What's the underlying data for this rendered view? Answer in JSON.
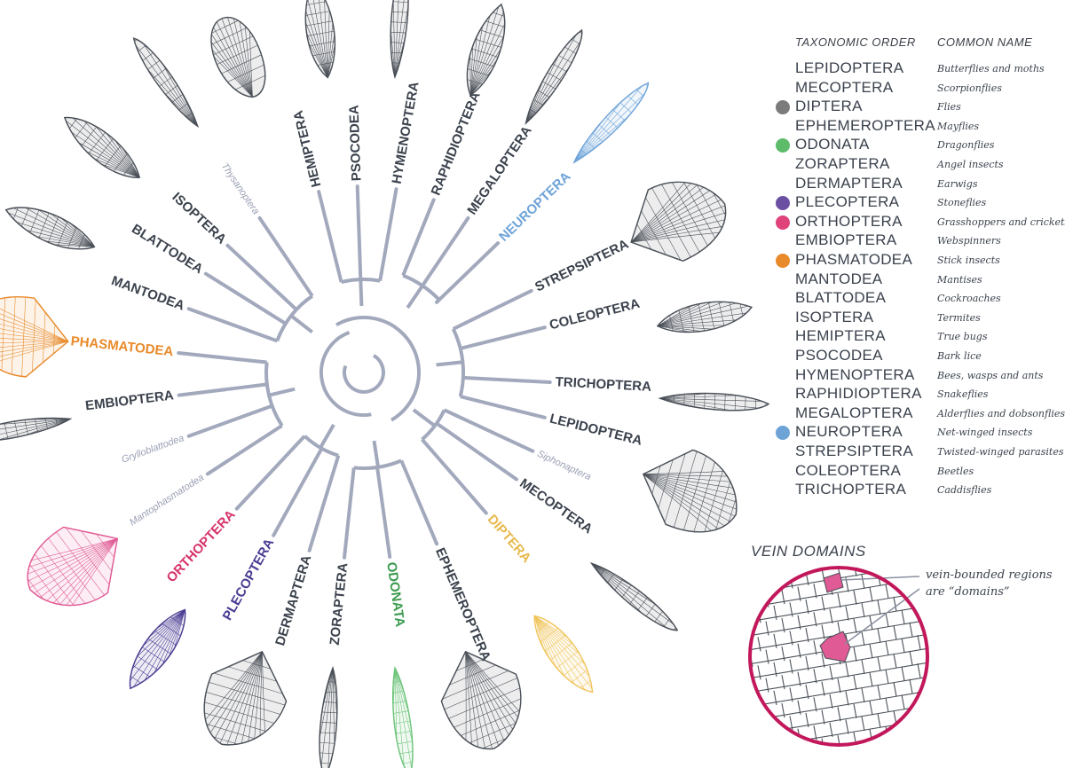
{
  "legend": {
    "header_order": "TAXONOMIC ORDER",
    "header_common": "COMMON NAME",
    "rows": [
      {
        "order": "LEPIDOPTERA",
        "common": "Butterflies and moths",
        "dot": ""
      },
      {
        "order": "MECOPTERA",
        "common": "Scorpionflies",
        "dot": ""
      },
      {
        "order": "DIPTERA",
        "common": "Flies",
        "dot": "#7b7b7b"
      },
      {
        "order": "EPHEMEROPTERA",
        "common": "Mayflies",
        "dot": ""
      },
      {
        "order": "ODONATA",
        "common": "Dragonflies",
        "dot": "#5dbb6a"
      },
      {
        "order": "ZORAPTERA",
        "common": "Angel insects",
        "dot": ""
      },
      {
        "order": "DERMAPTERA",
        "common": "Earwigs",
        "dot": ""
      },
      {
        "order": "PLECOPTERA",
        "common": "Stoneflies",
        "dot": "#6a4fa3"
      },
      {
        "order": "ORTHOPTERA",
        "common": "Grasshoppers and crickets",
        "dot": "#e0427a"
      },
      {
        "order": "EMBIOPTERA",
        "common": "Webspinners",
        "dot": ""
      },
      {
        "order": "PHASMATODEA",
        "common": "Stick insects",
        "dot": "#e88a2a"
      },
      {
        "order": "MANTODEA",
        "common": "Mantises",
        "dot": ""
      },
      {
        "order": "BLATTODEA",
        "common": "Cockroaches",
        "dot": ""
      },
      {
        "order": "ISOPTERA",
        "common": "Termites",
        "dot": ""
      },
      {
        "order": "HEMIPTERA",
        "common": "True bugs",
        "dot": ""
      },
      {
        "order": "PSOCODEA",
        "common": "Bark lice",
        "dot": ""
      },
      {
        "order": "HYMENOPTERA",
        "common": "Bees, wasps and ants",
        "dot": ""
      },
      {
        "order": "RAPHIDIOPTERA",
        "common": "Snakeflies",
        "dot": ""
      },
      {
        "order": "MEGALOPTERA",
        "common": "Alderflies and dobsonflies",
        "dot": ""
      },
      {
        "order": "NEUROPTERA",
        "common": "Net-winged insects",
        "dot": "#6ea3d8"
      },
      {
        "order": "STREPSIPTERA",
        "common": "Twisted-winged parasites",
        "dot": ""
      },
      {
        "order": "COLEOPTERA",
        "common": "Beetles",
        "dot": ""
      },
      {
        "order": "TRICHOPTERA",
        "common": "Caddisflies",
        "dot": ""
      }
    ]
  },
  "tree": {
    "center_color": "#a3a9bd",
    "tips": [
      {
        "label": "HEMIPTERA",
        "angle": -104,
        "style": "bold",
        "color": "#3b424d"
      },
      {
        "label": "PSOCODEA",
        "angle": -92,
        "style": "bold",
        "color": "#3b424d"
      },
      {
        "label": "HYMENOPTERA",
        "angle": -80,
        "style": "bold",
        "color": "#3b424d"
      },
      {
        "label": "RAPHIDIOPTERA",
        "angle": -68,
        "style": "bold",
        "color": "#3b424d"
      },
      {
        "label": "MEGALOPTERA",
        "angle": -56,
        "style": "bold",
        "color": "#3b424d"
      },
      {
        "label": "NEUROPTERA",
        "angle": -44,
        "style": "bold",
        "color": "#6ea3d8"
      },
      {
        "label": "STREPSIPTERA",
        "angle": -26,
        "style": "bold",
        "color": "#3b424d"
      },
      {
        "label": "COLEOPTERA",
        "angle": -14,
        "style": "bold",
        "color": "#3b424d"
      },
      {
        "label": "TRICHOPTERA",
        "angle": 3,
        "style": "bold",
        "color": "#3b424d"
      },
      {
        "label": "LEPIDOPTERA",
        "angle": 14,
        "style": "bold",
        "color": "#3b424d"
      },
      {
        "label": "Siphonaptera",
        "angle": 25,
        "style": "minor",
        "color": "#9aa0b4"
      },
      {
        "label": "MECOPTERA",
        "angle": 35,
        "style": "bold",
        "color": "#3b424d"
      },
      {
        "label": "DIPTERA",
        "angle": 49,
        "style": "bold",
        "color": "#e8b94c"
      },
      {
        "label": "EPHEMEROPTERA",
        "angle": 67,
        "style": "bold",
        "color": "#3b424d"
      },
      {
        "label": "ODONATA",
        "angle": 82,
        "style": "bold",
        "color": "#3a9a4e"
      },
      {
        "label": "ZORAPTERA",
        "angle": 96,
        "style": "bold",
        "color": "#3b424d"
      },
      {
        "label": "DERMAPTERA",
        "angle": 107,
        "style": "bold",
        "color": "#3b424d"
      },
      {
        "label": "PLECOPTERA",
        "angle": 119,
        "style": "bold",
        "color": "#4a3c93"
      },
      {
        "label": "ORTHOPTERA",
        "angle": 133,
        "style": "bold",
        "color": "#d6336c"
      },
      {
        "label": "Mantophasmatodea",
        "angle": 147,
        "style": "minor",
        "color": "#9aa0b4"
      },
      {
        "label": "Grylloblattodea",
        "angle": 160,
        "style": "minor",
        "color": "#9aa0b4"
      },
      {
        "label": "EMBIOPTERA",
        "angle": 173,
        "style": "bold",
        "color": "#3b424d"
      },
      {
        "label": "PHASMATODEA",
        "angle": 186,
        "style": "bold",
        "color": "#e88a2a"
      },
      {
        "label": "MANTODEA",
        "angle": 200,
        "style": "bold",
        "color": "#3b424d"
      },
      {
        "label": "BLATTODEA",
        "angle": 212,
        "style": "bold",
        "color": "#3b424d"
      },
      {
        "label": "ISOPTERA",
        "angle": 223,
        "style": "bold",
        "color": "#3b424d"
      },
      {
        "label": "Thysanoptera",
        "angle": 236,
        "style": "minor",
        "color": "#9aa0b4"
      }
    ]
  },
  "wings": [
    {
      "name": "hemiptera-wing",
      "angle": -112,
      "color": "#4a5058",
      "shape": "oval"
    },
    {
      "name": "psocodea-wing",
      "angle": -97,
      "color": "#4a5058",
      "shape": "leaf"
    },
    {
      "name": "hymenoptera-wing",
      "angle": -84,
      "color": "#4a5058",
      "shape": "long"
    },
    {
      "name": "raphidioptera-wing",
      "angle": -69,
      "color": "#4a5058",
      "shape": "leaf"
    },
    {
      "name": "megaloptera-wing",
      "angle": -57,
      "color": "#4a5058",
      "shape": "long"
    },
    {
      "name": "neuroptera-wing",
      "angle": -45,
      "color": "#6ea3d8",
      "shape": "long"
    },
    {
      "name": "strepsiptera-wing",
      "angle": -26,
      "color": "#4a5058",
      "shape": "fan"
    },
    {
      "name": "coleoptera-wing",
      "angle": -9,
      "color": "#4a5058",
      "shape": "leaf"
    },
    {
      "name": "trichoptera-wing",
      "angle": 5,
      "color": "#4a5058",
      "shape": "long"
    },
    {
      "name": "lepidoptera-wing",
      "angle": 20,
      "color": "#4a5058",
      "shape": "fan"
    },
    {
      "name": "mecoptera-wing",
      "angle": 40,
      "color": "#4a5058",
      "shape": "long"
    },
    {
      "name": "diptera-wing",
      "angle": 55,
      "color": "#f0c45a",
      "shape": "leaf"
    },
    {
      "name": "ephemeroptera-wing",
      "angle": 70,
      "color": "#4a5058",
      "shape": "fan"
    },
    {
      "name": "odonata-wing",
      "angle": 84,
      "color": "#6dc47a",
      "shape": "long"
    },
    {
      "name": "zoraptera-wing",
      "angle": 96,
      "color": "#4a5058",
      "shape": "long"
    },
    {
      "name": "dermaptera-wing",
      "angle": 110,
      "color": "#4a5058",
      "shape": "fan"
    },
    {
      "name": "plecoptera-wing",
      "angle": 127,
      "color": "#4a3c93",
      "shape": "leaf"
    },
    {
      "name": "orthoptera-wing",
      "angle": 146,
      "color": "#e05a95",
      "shape": "fan"
    },
    {
      "name": "embioptera-wing",
      "angle": 171,
      "color": "#4a5058",
      "shape": "long"
    },
    {
      "name": "phasmatodea-wing",
      "angle": 186,
      "color": "#e88a2a",
      "shape": "fan"
    },
    {
      "name": "mantodea-wing",
      "angle": 205,
      "color": "#4a5058",
      "shape": "leaf"
    },
    {
      "name": "blattodea-wing",
      "angle": 221,
      "color": "#4a5058",
      "shape": "leaf"
    },
    {
      "name": "isoptera-wing",
      "angle": 236,
      "color": "#4a5058",
      "shape": "long"
    }
  ],
  "vein_domains": {
    "title": "VEIN DOMAINS",
    "caption_line1": "vein-bounded regions",
    "caption_line2": "are “domains”",
    "ring_color": "#c2185b",
    "domain_color": "#e05a95"
  }
}
